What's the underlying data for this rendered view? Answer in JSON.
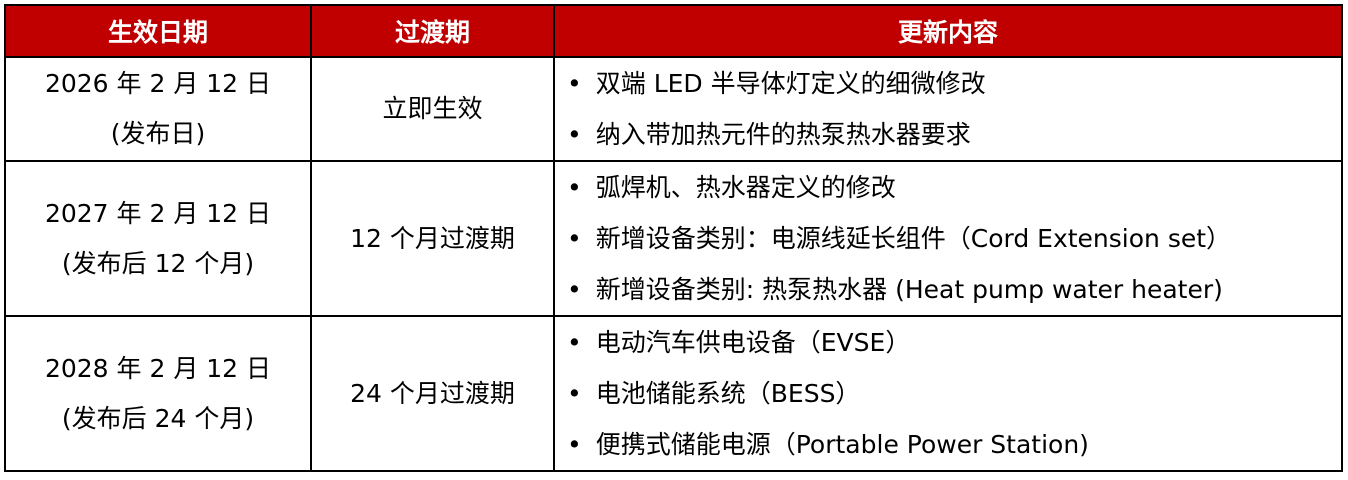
{
  "header_color": "#C00000",
  "headers": [
    "生效日期",
    "过渡期",
    "更新内容"
  ],
  "rows": [
    {
      "date": "2026 年 2 月 12 日",
      "date_note": "(发布日)",
      "transition": "立即生效",
      "updates": [
        "双端 LED 半导体灯定义的细微修改",
        "纳入带加热元件的热泵热水器要求"
      ]
    },
    {
      "date": "2027 年 2 月 12 日",
      "date_note": "(发布后 12 个月)",
      "transition": "12 个月过渡期",
      "updates": [
        "弧焊机、热水器定义的修改",
        "新增设备类别：电源线延长组件（Cord Extension set）",
        "新增设备类别: 热泵热水器 (Heat pump water heater)"
      ]
    },
    {
      "date": "2028 年 2 月 12 日",
      "date_note": "(发布后 24 个月)",
      "transition": "24 个月过渡期",
      "updates": [
        "电动汽车供电设备（EVSE）",
        "电池储能系统（BESS）",
        "便携式储能电源（Portable Power Station)"
      ]
    }
  ]
}
